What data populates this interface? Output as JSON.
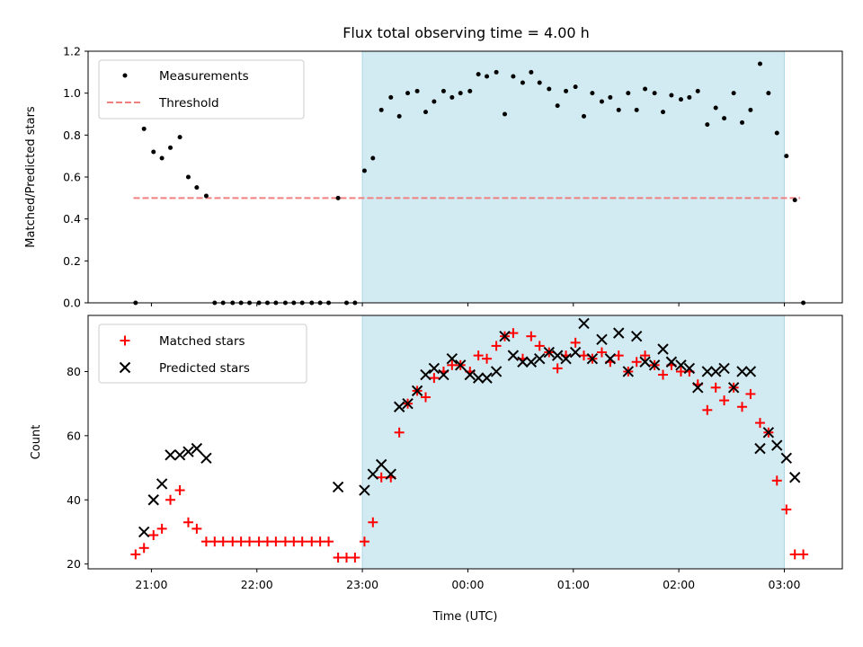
{
  "title": "Flux total observing time = 4.00 h",
  "colors": {
    "shade": "#add8e6",
    "measurement": "#000000",
    "threshold": "#f08080",
    "matched": "#ff0000",
    "predicted": "#000000"
  },
  "chart_data": [
    {
      "type": "scatter",
      "ylabel": "Matched/Predicted stars",
      "xlim": [
        20.4,
        27.55
      ],
      "ylim": [
        0.0,
        1.2
      ],
      "yticks": [
        0.0,
        0.2,
        0.4,
        0.6,
        0.8,
        1.0,
        1.2
      ],
      "ytick_labels": [
        "0.0",
        "0.2",
        "0.4",
        "0.6",
        "0.8",
        "1.0",
        "1.2"
      ],
      "shaded_interval": [
        23.0,
        27.0
      ],
      "legend_position": "top-left",
      "legend": [
        "Measurements",
        "Threshold"
      ],
      "threshold": {
        "name": "Threshold",
        "value": 0.5,
        "x_range": [
          20.83,
          27.15
        ]
      },
      "series": [
        {
          "name": "Measurements",
          "marker": "dot",
          "x": [
            20.85,
            20.93,
            21.02,
            21.1,
            21.18,
            21.27,
            21.35,
            21.43,
            21.52,
            21.6,
            21.68,
            21.77,
            21.85,
            21.93,
            22.02,
            22.1,
            22.18,
            22.27,
            22.35,
            22.43,
            22.52,
            22.6,
            22.68,
            22.77,
            22.85,
            22.93,
            23.02,
            23.1,
            23.18,
            23.27,
            23.35,
            23.43,
            23.52,
            23.6,
            23.68,
            23.77,
            23.85,
            23.93,
            24.02,
            24.1,
            24.18,
            24.27,
            24.35,
            24.43,
            24.52,
            24.6,
            24.68,
            24.77,
            24.85,
            24.93,
            25.02,
            25.1,
            25.18,
            25.27,
            25.35,
            25.43,
            25.52,
            25.6,
            25.68,
            25.77,
            25.85,
            25.93,
            26.02,
            26.1,
            26.18,
            26.27,
            26.35,
            26.43,
            26.52,
            26.6,
            26.68,
            26.77,
            26.85,
            26.93,
            27.02,
            27.1,
            27.18
          ],
          "y": [
            0.0,
            0.83,
            0.72,
            0.69,
            0.74,
            0.79,
            0.6,
            0.55,
            0.51,
            0.0,
            0.0,
            0.0,
            0.0,
            0.0,
            0.0,
            0.0,
            0.0,
            0.0,
            0.0,
            0.0,
            0.0,
            0.0,
            0.0,
            0.5,
            0.0,
            0.0,
            0.63,
            0.69,
            0.92,
            0.98,
            0.89,
            1.0,
            1.01,
            0.91,
            0.96,
            1.01,
            0.98,
            1.0,
            1.01,
            1.09,
            1.08,
            1.1,
            0.9,
            1.08,
            1.05,
            1.1,
            1.05,
            1.02,
            0.94,
            1.01,
            1.03,
            0.89,
            1.0,
            0.96,
            0.98,
            0.92,
            1.0,
            0.92,
            1.02,
            1.0,
            0.91,
            0.99,
            0.97,
            0.98,
            1.01,
            0.85,
            0.93,
            0.88,
            1.0,
            0.86,
            0.92,
            1.14,
            1.0,
            0.81,
            0.7,
            0.49,
            0.0
          ]
        }
      ]
    },
    {
      "type": "scatter",
      "xlabel": "Time (UTC)",
      "ylabel": "Count",
      "xlim": [
        20.4,
        27.55
      ],
      "ylim": [
        18.5,
        97.5
      ],
      "xticks": [
        21,
        22,
        23,
        24,
        25,
        26,
        27
      ],
      "xtick_labels": [
        "21:00",
        "22:00",
        "23:00",
        "00:00",
        "01:00",
        "02:00",
        "03:00"
      ],
      "yticks": [
        20,
        40,
        60,
        80
      ],
      "ytick_labels": [
        "20",
        "40",
        "60",
        "80"
      ],
      "shaded_interval": [
        23.0,
        27.0
      ],
      "legend_position": "top-left",
      "legend": [
        "Matched stars",
        "Predicted stars"
      ],
      "series": [
        {
          "name": "Matched stars",
          "marker": "plus",
          "x": [
            20.85,
            20.93,
            21.02,
            21.1,
            21.18,
            21.27,
            21.35,
            21.43,
            21.52,
            21.6,
            21.68,
            21.77,
            21.85,
            21.93,
            22.02,
            22.1,
            22.18,
            22.27,
            22.35,
            22.43,
            22.52,
            22.6,
            22.68,
            22.77,
            22.85,
            22.93,
            23.02,
            23.1,
            23.18,
            23.27,
            23.35,
            23.43,
            23.52,
            23.6,
            23.68,
            23.77,
            23.85,
            23.93,
            24.02,
            24.1,
            24.18,
            24.27,
            24.35,
            24.43,
            24.52,
            24.6,
            24.68,
            24.77,
            24.85,
            24.93,
            25.02,
            25.1,
            25.18,
            25.27,
            25.35,
            25.43,
            25.52,
            25.6,
            25.68,
            25.77,
            25.85,
            25.93,
            26.02,
            26.1,
            26.18,
            26.27,
            26.35,
            26.43,
            26.52,
            26.6,
            26.68,
            26.77,
            26.85,
            26.93,
            27.02,
            27.1,
            27.18
          ],
          "y": [
            23,
            25,
            29,
            31,
            40,
            43,
            33,
            31,
            27,
            27,
            27,
            27,
            27,
            27,
            27,
            27,
            27,
            27,
            27,
            27,
            27,
            27,
            27,
            22,
            22,
            22,
            27,
            33,
            47,
            47,
            61,
            70,
            74,
            72,
            78,
            80,
            82,
            82,
            80,
            85,
            84,
            88,
            91,
            92,
            84,
            91,
            88,
            86,
            81,
            85,
            89,
            85,
            84,
            86,
            83,
            85,
            80,
            83,
            85,
            82,
            79,
            82,
            80,
            80,
            76,
            68,
            75,
            71,
            75,
            69,
            73,
            64,
            61,
            46,
            37,
            23,
            23
          ]
        },
        {
          "name": "Predicted stars",
          "marker": "x",
          "x": [
            20.93,
            21.02,
            21.1,
            21.18,
            21.27,
            21.35,
            21.43,
            21.52,
            22.77,
            23.02,
            23.1,
            23.18,
            23.27,
            23.35,
            23.43,
            23.52,
            23.6,
            23.68,
            23.77,
            23.85,
            23.93,
            24.02,
            24.1,
            24.18,
            24.27,
            24.35,
            24.43,
            24.52,
            24.6,
            24.68,
            24.77,
            24.85,
            24.93,
            25.02,
            25.1,
            25.18,
            25.27,
            25.35,
            25.43,
            25.52,
            25.6,
            25.68,
            25.77,
            25.85,
            25.93,
            26.02,
            26.1,
            26.18,
            26.27,
            26.35,
            26.43,
            26.52,
            26.6,
            26.68,
            26.77,
            26.85,
            26.93,
            27.02,
            27.1
          ],
          "y": [
            30,
            40,
            45,
            54,
            54,
            55,
            56,
            53,
            44,
            43,
            48,
            51,
            48,
            69,
            70,
            74,
            79,
            81,
            79,
            84,
            82,
            79,
            78,
            78,
            80,
            91,
            85,
            83,
            83,
            84,
            86,
            85,
            84,
            86,
            95,
            84,
            90,
            84,
            92,
            80,
            91,
            83,
            82,
            87,
            83,
            82,
            81,
            75,
            80,
            80,
            81,
            75,
            80,
            80,
            56,
            61,
            57,
            53,
            47
          ]
        }
      ]
    }
  ]
}
